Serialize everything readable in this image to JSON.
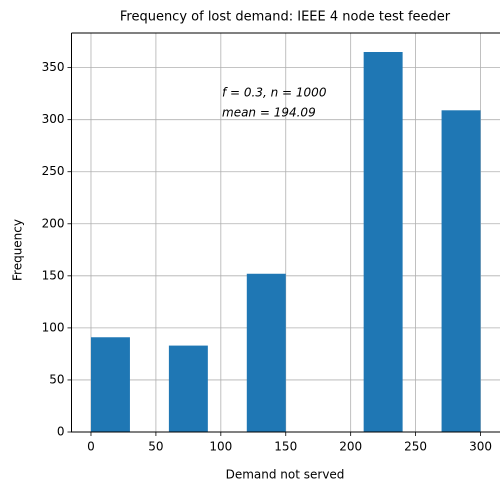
{
  "chart_data": {
    "type": "histogram",
    "title": "Frequency of lost demand: IEEE 4 node test feeder",
    "x_label": "Demand not served",
    "y_label": "Frequency",
    "annotations": [
      "f = 0.3,  n = 1000",
      "mean = 194.09"
    ],
    "bins": [
      0,
      30,
      60,
      90,
      120,
      150,
      180,
      210,
      240,
      270,
      300
    ],
    "counts": [
      91,
      0,
      83,
      0,
      152,
      0,
      0,
      365,
      0,
      309
    ],
    "color": "#1f77b4",
    "xlim": [
      -15,
      315
    ],
    "ylim": [
      0,
      383.25
    ],
    "xticks": [
      0,
      50,
      100,
      150,
      200,
      250,
      300
    ],
    "yticks": [
      0,
      50,
      100,
      150,
      200,
      250,
      300,
      350
    ],
    "grid": true
  }
}
